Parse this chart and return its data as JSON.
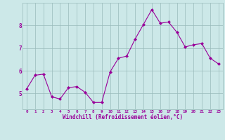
{
  "x": [
    0,
    1,
    2,
    3,
    4,
    5,
    6,
    7,
    8,
    9,
    10,
    11,
    12,
    13,
    14,
    15,
    16,
    17,
    18,
    19,
    20,
    21,
    22,
    23
  ],
  "y": [
    5.2,
    5.8,
    5.85,
    4.85,
    4.75,
    5.25,
    5.3,
    5.05,
    4.6,
    4.6,
    5.95,
    6.55,
    6.65,
    7.4,
    8.05,
    8.7,
    8.1,
    8.15,
    7.7,
    7.05,
    7.15,
    7.2,
    6.55,
    6.3
  ],
  "line_color": "#990099",
  "marker_color": "#990099",
  "bg_color": "#cce8e8",
  "grid_color": "#99bbbb",
  "xlabel": "Windchill (Refroidissement éolien,°C)",
  "xlabel_color": "#990099",
  "tick_color": "#990099",
  "ylim_min": 4.3,
  "ylim_max": 9.0,
  "xlim_min": -0.5,
  "xlim_max": 23.5,
  "yticks": [
    5,
    6,
    7,
    8
  ],
  "xticks": [
    0,
    1,
    2,
    3,
    4,
    5,
    6,
    7,
    8,
    9,
    10,
    11,
    12,
    13,
    14,
    15,
    16,
    17,
    18,
    19,
    20,
    21,
    22,
    23
  ]
}
